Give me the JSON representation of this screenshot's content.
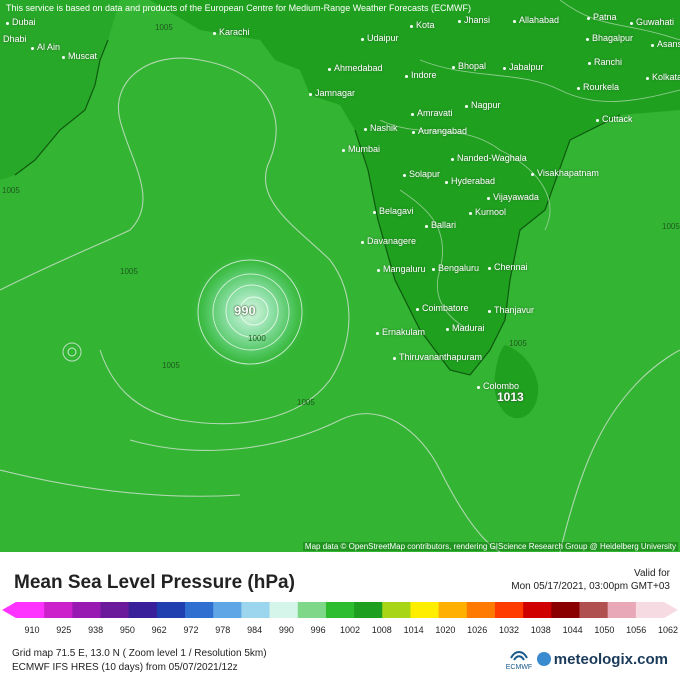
{
  "map": {
    "disclaimer": "This service is based on data and products of the European Centre for Medium-Range Weather Forecasts (ECMWF)",
    "attribution": "Map data © OpenStreetMap contributors, rendering GIScience Research Group @ Heidelberg University",
    "low_label": "990",
    "colombo_label": "1013",
    "isobar_labels": [
      "1005",
      "1005",
      "1005",
      "1005",
      "1005",
      "1000",
      "1005",
      "1005"
    ],
    "cities": [
      "Dubai",
      "Dhabi",
      "Al Ain",
      "Muscat",
      "Karachi",
      "Kota",
      "Jhansi",
      "Allahabad",
      "Patna",
      "Guwahati",
      "Udaipur",
      "Bhagalpur",
      "Asansol",
      "Ahmedabad",
      "Indore",
      "Bhopal",
      "Jabalpur",
      "Ranchi",
      "Kolkata",
      "Jamnagar",
      "Rourkela",
      "Amravati",
      "Nagpur",
      "Nashik",
      "Aurangabad",
      "Cuttack",
      "Mumbai",
      "Nanded-Waghala",
      "Solapur",
      "Hyderabad",
      "Visakhapatnam",
      "Vijayawada",
      "Belagavi",
      "Kurnool",
      "Ballari",
      "Davanagere",
      "Mangaluru",
      "Bengaluru",
      "Chennai",
      "Coimbatore",
      "Thanjavur",
      "Ernakulam",
      "Madurai",
      "Thiruvananthapuram",
      "Colombo"
    ],
    "colors": {
      "ocean": "#33b433",
      "land": "#1fa01f",
      "low_core": "#c8f0d0",
      "isobar": "#b0d8b0"
    }
  },
  "legend": {
    "title": "Mean Sea Level Pressure (hPa)",
    "valid_label": "Valid for",
    "valid_time": "Mon 05/17/2021, 03:00pm GMT+03",
    "ticks": [
      "910",
      "925",
      "938",
      "950",
      "962",
      "972",
      "978",
      "984",
      "990",
      "996",
      "1002",
      "1008",
      "1014",
      "1020",
      "1026",
      "1032",
      "1038",
      "1044",
      "1050",
      "1056",
      "1062"
    ],
    "colors": [
      "#ff33ff",
      "#cc22cc",
      "#991ab3",
      "#6a1a9a",
      "#3a1f9a",
      "#1f3fb0",
      "#2f6fd0",
      "#5fa6e6",
      "#9cd6ee",
      "#d5f5ea",
      "#7fd889",
      "#2ebd2e",
      "#1f9f1f",
      "#a8d617",
      "#ffee00",
      "#ffb000",
      "#ff7a00",
      "#ff3b00",
      "#d00000",
      "#8a0000",
      "#b05050",
      "#e8a8b8",
      "#f7dbe3"
    ]
  },
  "footer": {
    "grid_info": "Grid map 71.5 E, 13.0 N ( Zoom level 1 / Resolution 5km)",
    "model_info": "ECMWF IFS HRES (10 days)  from  05/07/2021/12z",
    "brand": "meteologix.com",
    "ecmwf_logo": "ECMWF"
  }
}
